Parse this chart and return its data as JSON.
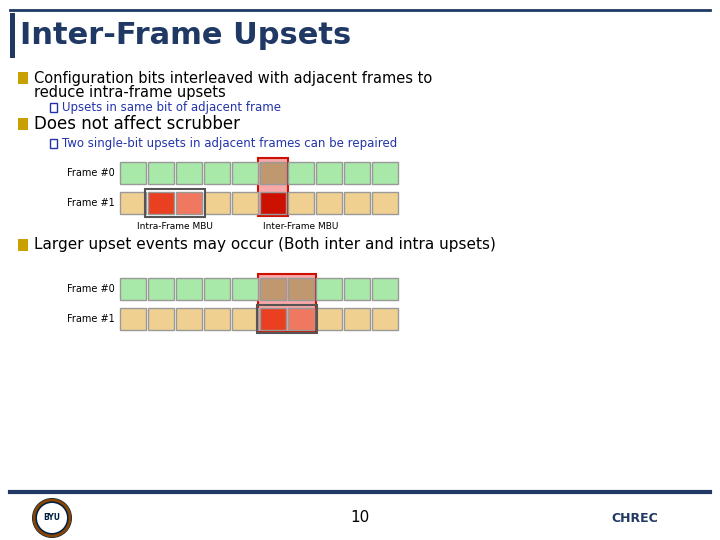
{
  "title": "Inter-Frame Upsets",
  "title_color": "#1F3864",
  "title_fontsize": 22,
  "bg_color": "#FFFFFF",
  "border_color": "#1F3864",
  "bullet_color": "#C8A000",
  "text_color": "#000000",
  "subtext_color": "#2233AA",
  "bullet1_line1": "Configuration bits interleaved with adjacent frames to",
  "bullet1_line2": "reduce intra-frame upsets",
  "bullet2": "Does not affect scrubber",
  "bullet3": "Larger upset events may occur (Both inter and intra upsets)",
  "sub1": "Upsets in same bit of adjacent frame",
  "sub2": "Two single-bit upsets in adjacent frames can be repaired",
  "green_cell": "#A8E8A8",
  "yellow_cell": "#F0D090",
  "red_dark": "#CC1100",
  "red_medium": "#E84020",
  "red_light": "#F07860",
  "pink_bg": "#F8A8A8",
  "tan_cell": "#C09870",
  "page_num": "10",
  "footer_color": "#1F3864"
}
